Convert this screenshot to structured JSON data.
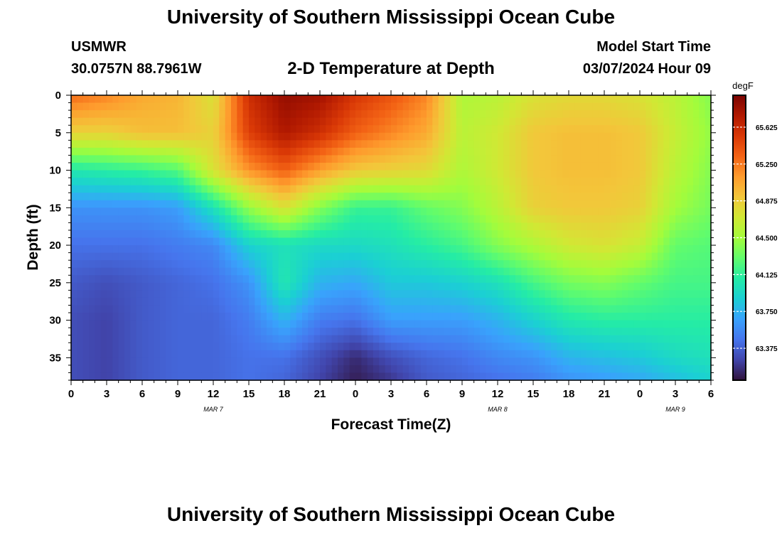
{
  "header": {
    "title": "University of Southern Mississippi Ocean Cube",
    "station": "USMWR",
    "coordinates": "30.0757N  88.7961W",
    "subtitle": "2-D Temperature at Depth",
    "start_label": "Model Start Time",
    "start_value": "03/07/2024 Hour 09"
  },
  "footer": {
    "title": "University of Southern Mississippi Ocean Cube"
  },
  "chart_data": {
    "type": "heatmap",
    "title": "2-D Temperature at Depth",
    "xlabel": "Forecast Time(Z)",
    "ylabel": "Depth (ft)",
    "units": "degF",
    "x_hours_range": [
      0,
      54
    ],
    "x_tick_hours": [
      0,
      3,
      6,
      9,
      12,
      15,
      18,
      21,
      24,
      27,
      30,
      33,
      36,
      39,
      42,
      45,
      48,
      51,
      54
    ],
    "x_tick_labels": [
      "0",
      "3",
      "6",
      "9",
      "12",
      "15",
      "18",
      "21",
      "0",
      "3",
      "6",
      "9",
      "12",
      "15",
      "18",
      "21",
      "0",
      "3",
      "6"
    ],
    "date_labels": [
      {
        "text": "MAR 7",
        "hour": 12
      },
      {
        "text": "MAR 8",
        "hour": 36
      },
      {
        "text": "MAR 9",
        "hour": 51
      }
    ],
    "y_range": [
      0,
      38
    ],
    "y_ticks": [
      0,
      5,
      10,
      15,
      20,
      25,
      30,
      35
    ],
    "colorbar_range": [
      63.05,
      65.95
    ],
    "colorbar_ticks": [
      "63.375",
      "63.750",
      "64.125",
      "64.500",
      "64.875",
      "65.250",
      "65.625"
    ],
    "colormap": [
      "#30123b",
      "#4145ab",
      "#4675ed",
      "#39a2fc",
      "#1bcfd4",
      "#24eca6",
      "#61fc6c",
      "#a4fc3b",
      "#d1e834",
      "#f3c63a",
      "#fe9b2d",
      "#f36315",
      "#d93806",
      "#b11901",
      "#7a0402"
    ],
    "profiles_at_hours": [
      0,
      3,
      6,
      9,
      12,
      15,
      18,
      21,
      24,
      27,
      30,
      33,
      36,
      39,
      42,
      45,
      48,
      51,
      54
    ],
    "profile_depths": [
      0,
      5,
      10,
      15,
      20,
      25,
      30,
      35,
      38
    ],
    "profiles": [
      [
        65.3,
        64.85,
        64.05,
        63.6,
        63.45,
        63.35,
        63.3,
        63.3,
        63.3
      ],
      [
        65.2,
        64.85,
        64.1,
        63.6,
        63.45,
        63.3,
        63.25,
        63.25,
        63.25
      ],
      [
        65.05,
        64.95,
        64.15,
        63.6,
        63.45,
        63.35,
        63.35,
        63.35,
        63.35
      ],
      [
        65.0,
        64.95,
        64.25,
        63.65,
        63.5,
        63.4,
        63.4,
        63.4,
        63.4
      ],
      [
        64.75,
        64.85,
        64.75,
        64.0,
        63.55,
        63.45,
        63.4,
        63.4,
        63.4
      ],
      [
        65.6,
        65.5,
        65.15,
        64.45,
        63.9,
        63.6,
        63.5,
        63.45,
        63.45
      ],
      [
        65.85,
        65.75,
        65.35,
        64.75,
        64.0,
        64.05,
        63.75,
        63.45,
        63.4
      ],
      [
        65.8,
        65.6,
        65.1,
        64.4,
        63.95,
        63.75,
        63.5,
        63.3,
        63.25
      ],
      [
        65.55,
        65.35,
        64.9,
        64.15,
        63.95,
        63.7,
        63.45,
        63.15,
        63.1
      ],
      [
        65.4,
        65.2,
        64.85,
        64.15,
        64.0,
        63.85,
        63.65,
        63.3,
        63.2
      ],
      [
        65.2,
        65.05,
        64.8,
        64.3,
        64.1,
        63.85,
        63.65,
        63.4,
        63.35
      ],
      [
        64.55,
        64.6,
        64.55,
        64.4,
        64.2,
        63.9,
        63.65,
        63.45,
        63.4
      ],
      [
        64.6,
        64.7,
        64.7,
        64.6,
        64.4,
        64.0,
        63.75,
        63.55,
        63.45
      ],
      [
        64.75,
        64.9,
        64.9,
        64.85,
        64.55,
        64.2,
        63.9,
        63.6,
        63.5
      ],
      [
        64.8,
        64.95,
        64.95,
        64.9,
        64.7,
        64.35,
        64.05,
        63.75,
        63.6
      ],
      [
        64.8,
        64.95,
        64.95,
        64.9,
        64.75,
        64.4,
        64.1,
        63.8,
        63.65
      ],
      [
        64.75,
        64.9,
        64.9,
        64.85,
        64.65,
        64.3,
        64.1,
        63.85,
        63.7
      ],
      [
        64.6,
        64.65,
        64.6,
        64.5,
        64.3,
        64.2,
        64.1,
        63.95,
        63.8
      ],
      [
        64.4,
        64.45,
        64.4,
        64.35,
        64.25,
        64.2,
        64.1,
        64.0,
        63.9
      ]
    ]
  }
}
